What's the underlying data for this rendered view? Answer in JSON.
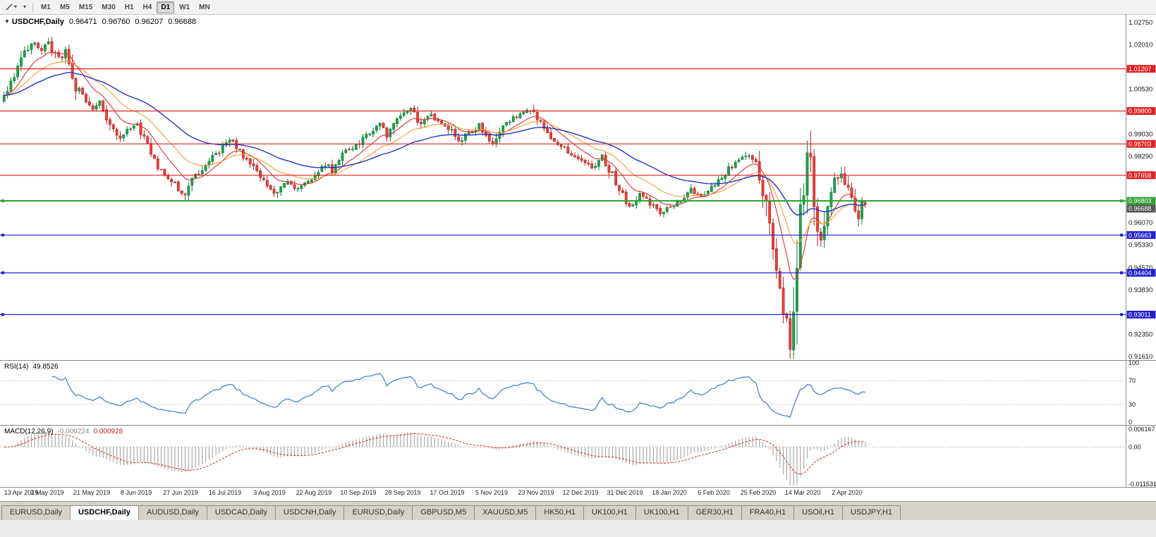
{
  "toolbar": {
    "caret_glyph": "▾",
    "timeframes": [
      "M1",
      "M5",
      "M15",
      "M30",
      "H1",
      "H4",
      "D1",
      "W1",
      "MN"
    ],
    "active_timeframe": "D1"
  },
  "chart": {
    "header": {
      "arrow": "▼",
      "symbol": "USDCHF,Daily",
      "open": "0.96471",
      "high": "0.96760",
      "low": "0.96207",
      "close": "0.96688"
    },
    "price_axis": {
      "ticks": [
        {
          "label": "1.02750",
          "value": 1.0275
        },
        {
          "label": "1.02010",
          "value": 1.0201
        },
        {
          "label": "1.00530",
          "value": 1.0053
        },
        {
          "label": "0.99030",
          "value": 0.9903
        },
        {
          "label": "0.98290",
          "value": 0.9829
        },
        {
          "label": "0.96070",
          "value": 0.9607
        },
        {
          "label": "0.95330",
          "value": 0.9533
        },
        {
          "label": "0.94570",
          "value": 0.9457
        },
        {
          "label": "0.93830",
          "value": 0.9383
        },
        {
          "label": "0.92350",
          "value": 0.9235
        },
        {
          "label": "0.91610",
          "value": 0.9161
        }
      ]
    },
    "levels": [
      {
        "label": "1.01207",
        "value": 1.01207,
        "color": "red"
      },
      {
        "label": "0.99800",
        "value": 0.998,
        "color": "red"
      },
      {
        "label": "0.98703",
        "value": 0.98703,
        "color": "red"
      },
      {
        "label": "0.97658",
        "value": 0.97658,
        "color": "red"
      },
      {
        "label": "0.96803",
        "value": 0.96803,
        "color": "green"
      },
      {
        "label": "0.95663",
        "value": 0.95663,
        "color": "blue"
      },
      {
        "label": "0.94404",
        "value": 0.94404,
        "color": "blue"
      },
      {
        "label": "0.93011",
        "value": 0.93011,
        "color": "blue"
      }
    ],
    "current_price": {
      "label": "0.96688",
      "value": 0.96688,
      "color": "current"
    },
    "dates": [
      "13 Apr 2019",
      "2 May 2019",
      "21 May 2019",
      "8 Jun 2019",
      "27 Jun 2019",
      "16 Jul 2019",
      "3 Aug 2019",
      "22 Aug 2019",
      "10 Sep 2019",
      "28 Sep 2019",
      "17 Oct 2019",
      "5 Nov 2019",
      "23 Nov 2019",
      "12 Dec 2019",
      "31 Dec 2019",
      "18 Jan 2020",
      "6 Feb 2020",
      "25 Feb 2020",
      "14 Mar 2020",
      "2 Apr 2020"
    ]
  },
  "rsi": {
    "label": "RSI(14)",
    "value": "49.8526",
    "period": 14,
    "ticks": [
      {
        "label": "100",
        "value": 100
      },
      {
        "label": "70",
        "value": 70
      },
      {
        "label": "30",
        "value": 30
      },
      {
        "label": "0",
        "value": 0
      }
    ],
    "guide_levels": [
      70,
      30
    ]
  },
  "macd": {
    "label": "MACD(12,26,9)",
    "value_main": "-0.000224",
    "value_signal": "0.000928",
    "params": [
      12,
      26,
      9
    ],
    "ticks": [
      {
        "label": "0.006167",
        "value": 0.006167
      },
      {
        "label": "0.00",
        "value": 0
      },
      {
        "label": "-0.011531",
        "value": -0.011531
      }
    ],
    "max": 0.006167,
    "min": -0.011531
  },
  "tabs": {
    "items": [
      "EURUSD,Daily",
      "USDCHF,Daily",
      "AUDUSD,Daily",
      "USDCAD,Daily",
      "USDCNH,Daily",
      "EURUSD,Daily",
      "GBPUSD,M5",
      "XAUUSD,M5",
      "HK50,H1",
      "UK100,H1",
      "UK100,H1",
      "GER30,H1",
      "FRA40,H1",
      "USOil,H1",
      "USDJPY,H1"
    ],
    "active_index": 1
  },
  "chart_data": {
    "type": "candlestick",
    "symbol": "USDCHF",
    "timeframe": "Daily",
    "x_range": [
      "13 Apr 2019",
      "2 Apr 2020"
    ],
    "price_range_visible": [
      0.9149,
      1.0301
    ],
    "count": 253,
    "step": 4.846,
    "last_close": 0.96688,
    "approximation": "daily candles synthesized from trend anchor points read off the chart",
    "anchors": [
      [
        0,
        1.0025
      ],
      [
        2,
        1.008
      ],
      [
        5,
        1.016
      ],
      [
        8,
        1.021
      ],
      [
        11,
        1.018
      ],
      [
        13,
        1.0205
      ],
      [
        16,
        1.015
      ],
      [
        18,
        1.017
      ],
      [
        21,
        1.006
      ],
      [
        24,
        1.002
      ],
      [
        26,
        0.999
      ],
      [
        28,
        1.001
      ],
      [
        31,
        0.993
      ],
      [
        34,
        0.988
      ],
      [
        36,
        0.9915
      ],
      [
        39,
        0.993
      ],
      [
        42,
        0.987
      ],
      [
        45,
        0.98
      ],
      [
        48,
        0.976
      ],
      [
        51,
        0.972
      ],
      [
        53,
        0.97
      ],
      [
        55,
        0.9745
      ],
      [
        58,
        0.979
      ],
      [
        61,
        0.983
      ],
      [
        64,
        0.9855
      ],
      [
        66,
        0.9885
      ],
      [
        69,
        0.9845
      ],
      [
        72,
        0.9805
      ],
      [
        75,
        0.976
      ],
      [
        78,
        0.9718
      ],
      [
        80,
        0.97
      ],
      [
        83,
        0.975
      ],
      [
        86,
        0.972
      ],
      [
        89,
        0.9745
      ],
      [
        91,
        0.977
      ],
      [
        94,
        0.9805
      ],
      [
        96,
        0.978
      ],
      [
        99,
        0.9835
      ],
      [
        102,
        0.986
      ],
      [
        104,
        0.9875
      ],
      [
        107,
        0.9905
      ],
      [
        110,
        0.9935
      ],
      [
        112,
        0.99
      ],
      [
        115,
        0.9945
      ],
      [
        117,
        0.9975
      ],
      [
        119,
        0.999
      ],
      [
        122,
        0.9935
      ],
      [
        125,
        0.9965
      ],
      [
        128,
        0.994
      ],
      [
        130,
        0.9925
      ],
      [
        133,
        0.9875
      ],
      [
        136,
        0.9905
      ],
      [
        139,
        0.993
      ],
      [
        141,
        0.9895
      ],
      [
        143,
        0.987
      ],
      [
        146,
        0.9925
      ],
      [
        149,
        0.9955
      ],
      [
        152,
        0.998
      ],
      [
        154,
        0.999
      ],
      [
        156,
        0.9955
      ],
      [
        159,
        0.9905
      ],
      [
        162,
        0.9875
      ],
      [
        165,
        0.9845
      ],
      [
        168,
        0.9825
      ],
      [
        169,
        0.9815
      ],
      [
        172,
        0.979
      ],
      [
        175,
        0.9825
      ],
      [
        178,
        0.9765
      ],
      [
        181,
        0.97
      ],
      [
        183,
        0.966
      ],
      [
        186,
        0.97
      ],
      [
        189,
        0.9675
      ],
      [
        192,
        0.9635
      ],
      [
        195,
        0.966
      ],
      [
        198,
        0.9685
      ],
      [
        201,
        0.9715
      ],
      [
        204,
        0.97
      ],
      [
        207,
        0.973
      ],
      [
        208,
        0.974
      ],
      [
        211,
        0.9775
      ],
      [
        214,
        0.981
      ],
      [
        217,
        0.984
      ],
      [
        220,
        0.98
      ],
      [
        221,
        0.977
      ],
      [
        223,
        0.965
      ],
      [
        225,
        0.95
      ],
      [
        227,
        0.938
      ],
      [
        229,
        0.927
      ],
      [
        230,
        0.92
      ],
      [
        231,
        0.925
      ],
      [
        232,
        0.942
      ],
      [
        233,
        0.96
      ],
      [
        234,
        0.975
      ],
      [
        235,
        0.985
      ],
      [
        236,
        0.978
      ],
      [
        237,
        0.965
      ],
      [
        238,
        0.956
      ],
      [
        239,
        0.953
      ],
      [
        240,
        0.96
      ],
      [
        241,
        0.966
      ],
      [
        242,
        0.97
      ],
      [
        243,
        0.974
      ],
      [
        244,
        0.977
      ],
      [
        245,
        0.976
      ],
      [
        246,
        0.973
      ],
      [
        247,
        0.9745
      ],
      [
        248,
        0.97
      ],
      [
        249,
        0.966
      ],
      [
        250,
        0.963
      ],
      [
        251,
        0.966
      ],
      [
        252,
        0.9669
      ]
    ],
    "moving_averages": [
      {
        "name": "fast",
        "period": 10,
        "color": "#e03030"
      },
      {
        "name": "mid",
        "period": 21,
        "color": "#f0a030"
      },
      {
        "name": "slow",
        "period": 45,
        "color": "#2233cc"
      }
    ],
    "colors": {
      "up": "#1fa24a",
      "up_stroke": "#127a35",
      "down": "#e6403a",
      "down_stroke": "#b5221e",
      "level_red": "#dd2222",
      "level_green": "#2fa32f",
      "level_blue": "#2222cc",
      "current": "#555555",
      "rsi_line": "#3a7bd5",
      "macd_hist": "#a8a8a8",
      "macd_signal": "#dd2222"
    }
  }
}
